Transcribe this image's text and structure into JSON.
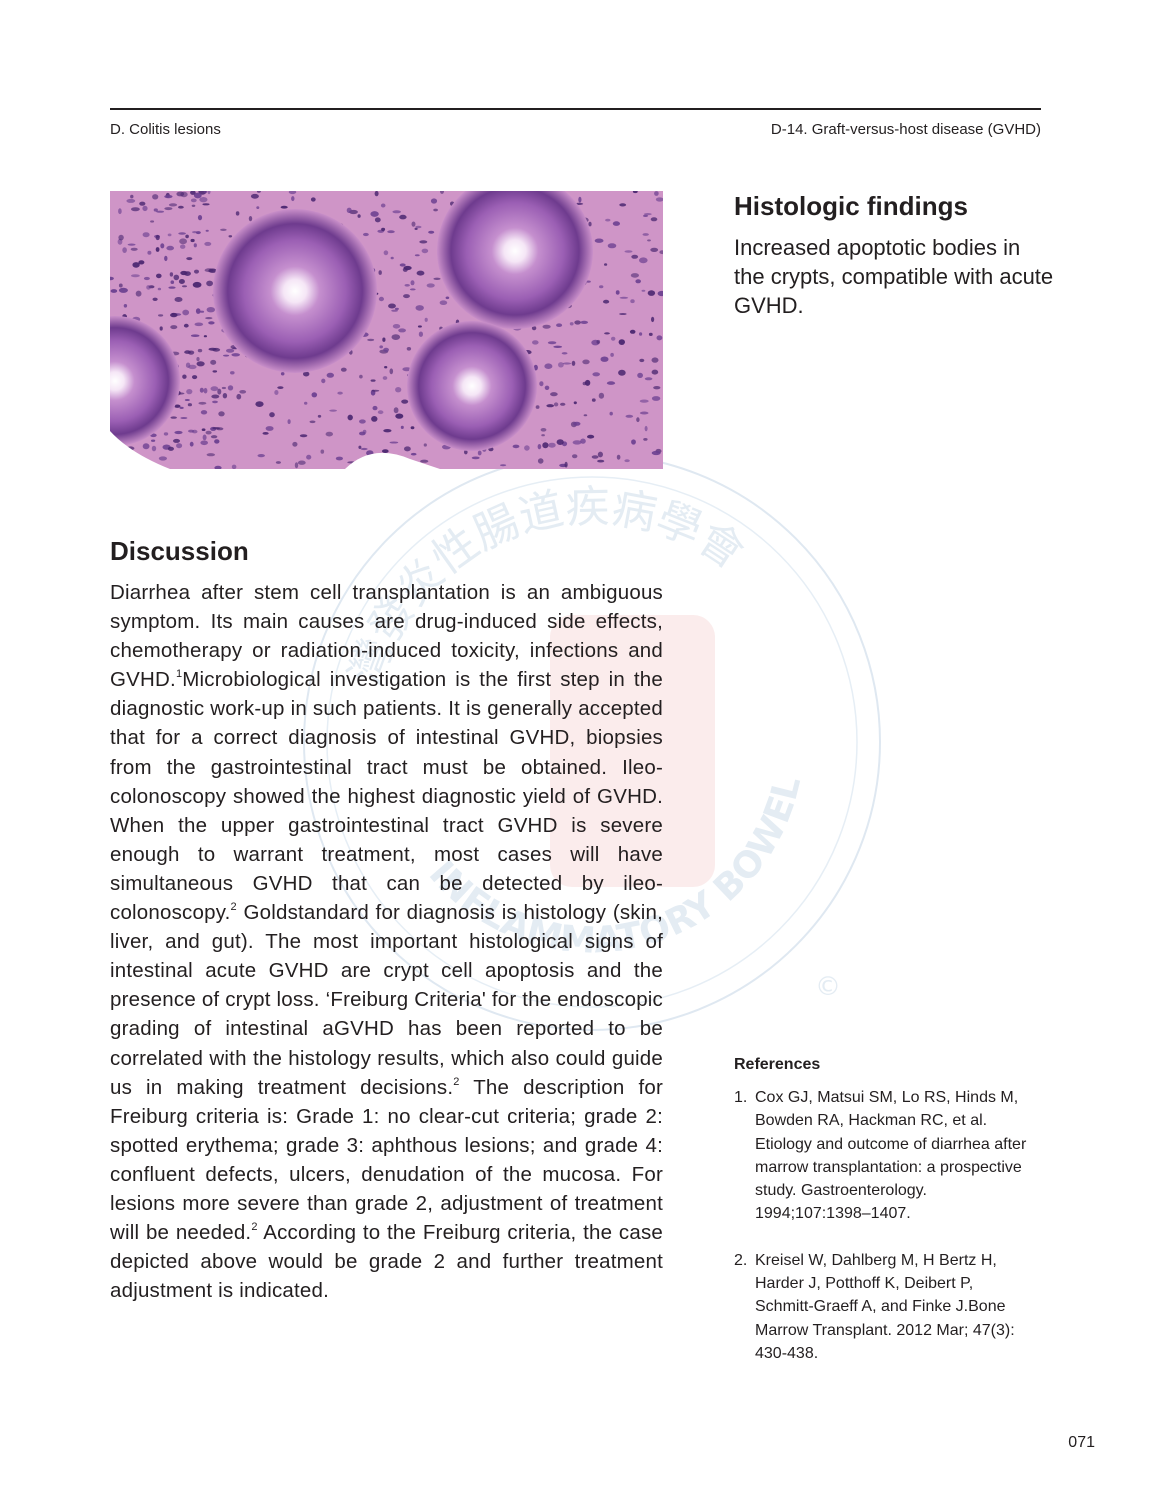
{
  "header": {
    "left": "D. Colitis lesions",
    "right": "D-14. Graft-versus-host disease (GVHD)"
  },
  "histologic": {
    "title": "Histologic findings",
    "text": "Increased apoptotic bodies in the crypts, compatible with acute GVHD."
  },
  "discussion": {
    "title": "Discussion",
    "parts": [
      "Diarrhea after stem cell transplantation is an ambiguous symptom. Its main causes are drug-induced side effects, chemotherapy or radiation-induced toxicity, infections and GVHD.",
      "1",
      "Microbiological investigation is the first step in the diagnostic work-up in such patients. It is generally accepted that for a correct diagnosis of intestinal GVHD, biopsies from the gastrointestinal tract must be obtained. Ileo-colonoscopy showed the highest diagnostic yield of GVHD. When the upper gastrointestinal tract GVHD is severe enough to warrant treatment, most cases will have simultaneous GVHD that can be detected by ileo-colonoscopy.",
      "2",
      " Goldstandard for diagnosis is histology (skin, liver, and gut). The most important histological signs of intestinal acute GVHD are crypt cell apoptosis and the presence of crypt loss. ‘Freiburg Criteria' for the endoscopic grading of intestinal aGVHD has been reported to be correlated with the histology results, which also could guide us in making treatment decisions.",
      "2",
      " The description for Freiburg criteria is: Grade 1: no clear-cut criteria; grade 2: spotted erythema; grade 3: aphthous lesions; and grade 4: confluent defects, ulcers, denudation of the mucosa. For lesions more severe than grade 2, adjustment of treatment will be needed.",
      "2",
      " According to the Freiburg criteria, the case depicted above would be grade 2 and further treatment adjustment is indicated."
    ]
  },
  "references": {
    "heading": "References",
    "items": [
      {
        "num": "1.",
        "text": "Cox GJ, Matsui SM, Lo RS, Hinds M, Bowden RA, Hackman RC, et al. Etiology and outcome of diarrhea after marrow transplantation: a prospective study. Gastroenterology. 1994;107:1398–1407."
      },
      {
        "num": "2.",
        "text": "Kreisel W, Dahlberg M, H Bertz H, Harder J, Potthoff K, Deibert P, Schmitt-Graeff A, and  Finke J.Bone Marrow Transplant. 2012 Mar; 47(3): 430-438."
      }
    ]
  },
  "watermark": {
    "chinese": "灣發炎性腸道疾病學會",
    "english": "INFLAMMATORY BOWEL DISEASE",
    "symbol": "©"
  },
  "page_number": "071"
}
